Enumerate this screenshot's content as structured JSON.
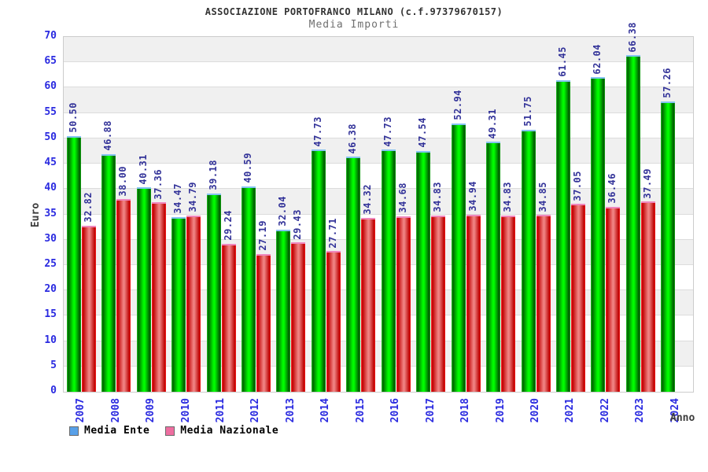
{
  "header": {
    "title": "ASSOCIAZIONE PORTOFRANCO MILANO (c.f.97379670157)",
    "subtitle": "Media Importi"
  },
  "chart_data": {
    "type": "bar",
    "title": "Media Importi",
    "xlabel": "Anno",
    "ylabel": "Euro",
    "ylim": [
      0,
      70
    ],
    "ytick_step": 5,
    "grid": true,
    "legend_position": "bottom-left",
    "categories": [
      "2007",
      "2008",
      "2009",
      "2010",
      "2011",
      "2012",
      "2013",
      "2014",
      "2015",
      "2016",
      "2017",
      "2018",
      "2019",
      "2020",
      "2021",
      "2022",
      "2023",
      "2024"
    ],
    "series": [
      {
        "name": "Media Ente",
        "legend_color": "#58a0e8",
        "bar_color": "#00e000",
        "values": [
          50.5,
          46.88,
          40.31,
          34.47,
          39.18,
          40.59,
          32.04,
          47.73,
          46.38,
          47.73,
          47.54,
          52.94,
          49.31,
          51.75,
          61.45,
          62.04,
          66.38,
          57.26
        ]
      },
      {
        "name": "Media Nazionale",
        "legend_color": "#ee6ea0",
        "bar_color": "#e04040",
        "values": [
          32.82,
          38.0,
          37.36,
          34.79,
          29.24,
          27.19,
          29.43,
          27.71,
          34.32,
          34.68,
          34.83,
          34.94,
          34.83,
          34.85,
          37.05,
          36.46,
          37.49,
          null
        ]
      }
    ]
  },
  "colors": {
    "title": "#333333",
    "subtitle": "#707070",
    "axis_tick": "#2a2ae0",
    "value_label": "#333399",
    "axis_title": "#3c3c3c",
    "band_gray": "#f0f0f0",
    "band_white": "#ffffff",
    "gridline": "#dcdcdc",
    "plot_border": "#cccccc"
  }
}
